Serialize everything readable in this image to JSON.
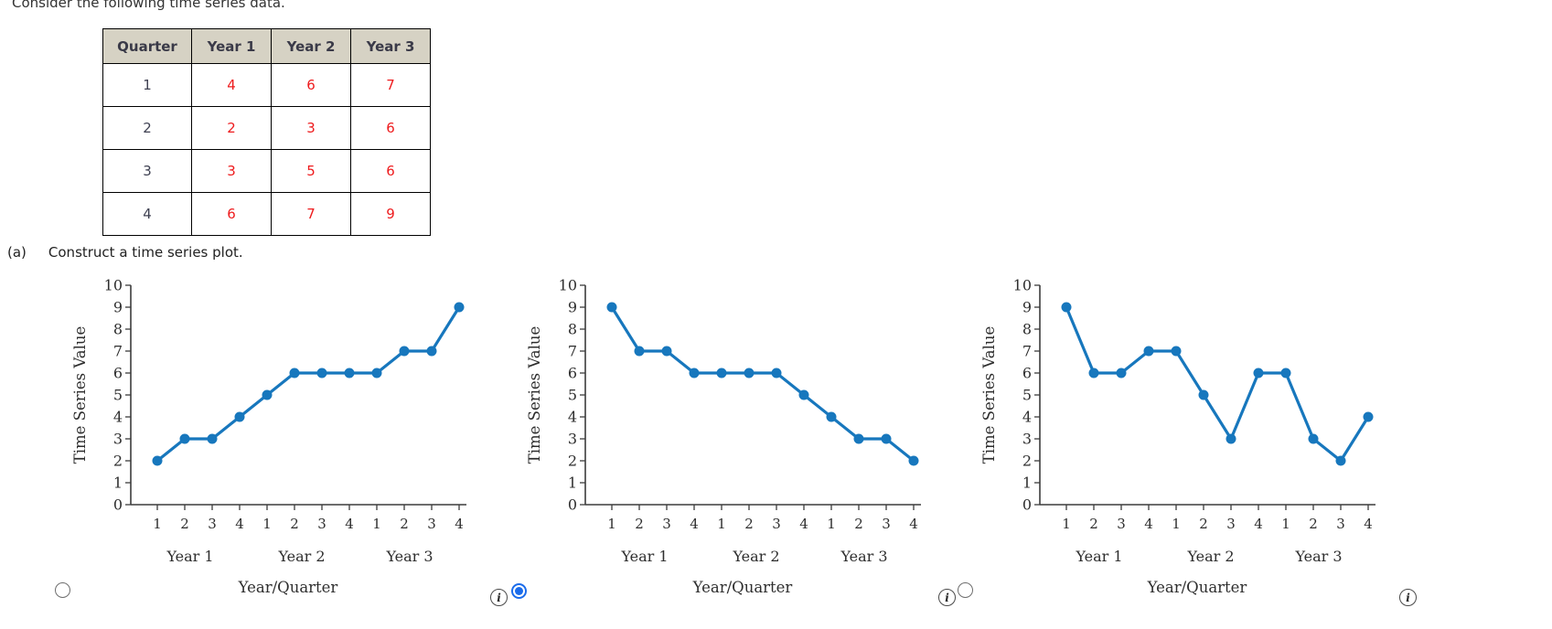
{
  "title": "Consider the following time series data.",
  "table": {
    "headers": [
      "Quarter",
      "Year 1",
      "Year 2",
      "Year 3"
    ],
    "rows": [
      [
        "1",
        "4",
        "6",
        "7"
      ],
      [
        "2",
        "2",
        "3",
        "6"
      ],
      [
        "3",
        "3",
        "5",
        "6"
      ],
      [
        "4",
        "6",
        "7",
        "9"
      ]
    ]
  },
  "question": {
    "label": "(a)",
    "text": "Construct a time series plot."
  },
  "icons": {
    "info_glyph": "i"
  },
  "colors": {
    "line": "#1777bd",
    "radio_selected": "#1b6ceb",
    "table_header_bg": "#d6d2c4",
    "value_red": "#ee1b1d"
  },
  "chart_data": [
    {
      "type": "line",
      "option": 1,
      "selected": false,
      "values": [
        2,
        3,
        3,
        4,
        5,
        6,
        6,
        6,
        6,
        7,
        7,
        9
      ],
      "x_tick_labels": [
        "1",
        "2",
        "3",
        "4",
        "1",
        "2",
        "3",
        "4",
        "1",
        "2",
        "3",
        "4"
      ],
      "group_labels": [
        "Year 1",
        "Year 2",
        "Year 3"
      ],
      "y_ticks": [
        0,
        1,
        2,
        3,
        4,
        5,
        6,
        7,
        8,
        9,
        10
      ],
      "ylim": [
        0,
        10
      ],
      "xlabel": "Year/Quarter",
      "ylabel": "Time Series Value"
    },
    {
      "type": "line",
      "option": 2,
      "selected": true,
      "values": [
        9,
        7,
        7,
        6,
        6,
        6,
        6,
        5,
        4,
        3,
        3,
        2
      ],
      "x_tick_labels": [
        "1",
        "2",
        "3",
        "4",
        "1",
        "2",
        "3",
        "4",
        "1",
        "2",
        "3",
        "4"
      ],
      "group_labels": [
        "Year 1",
        "Year 2",
        "Year 3"
      ],
      "y_ticks": [
        0,
        1,
        2,
        3,
        4,
        5,
        6,
        7,
        8,
        9,
        10
      ],
      "ylim": [
        0,
        10
      ],
      "xlabel": "Year/Quarter",
      "ylabel": "Time Series Value"
    },
    {
      "type": "line",
      "option": 3,
      "selected": false,
      "values": [
        9,
        6,
        6,
        7,
        7,
        5,
        3,
        6,
        6,
        3,
        2,
        4
      ],
      "x_tick_labels": [
        "1",
        "2",
        "3",
        "4",
        "1",
        "2",
        "3",
        "4",
        "1",
        "2",
        "3",
        "4"
      ],
      "group_labels": [
        "Year 1",
        "Year 2",
        "Year 3"
      ],
      "y_ticks": [
        0,
        1,
        2,
        3,
        4,
        5,
        6,
        7,
        8,
        9,
        10
      ],
      "ylim": [
        0,
        10
      ],
      "xlabel": "Year/Quarter",
      "ylabel": "Time Series Value"
    }
  ]
}
